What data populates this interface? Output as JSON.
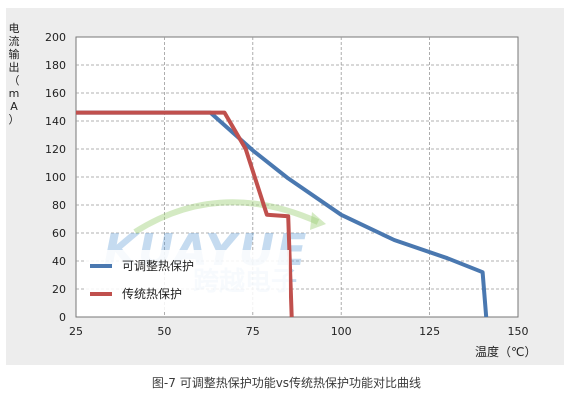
{
  "caption": "图-7 可调整热保护功能vs传统热保护功能对比曲线",
  "watermark": {
    "latin": "KUAYUE",
    "cjk": "跨越电子",
    "colors": [
      "#5b9bd5",
      "#9fd07a"
    ]
  },
  "chart_data": {
    "type": "line",
    "ylabel_chars": [
      "电",
      "流",
      "输",
      "出",
      "（",
      "m",
      "A",
      "）"
    ],
    "xlabel": "温度（℃）",
    "xlim": [
      25,
      150
    ],
    "ylim": [
      0,
      200
    ],
    "xticks": [
      25,
      50,
      75,
      100,
      125,
      150
    ],
    "yticks": [
      0,
      20,
      40,
      60,
      80,
      100,
      120,
      140,
      160,
      180,
      200
    ],
    "grid": true,
    "legend_position": "bottom-left",
    "series": [
      {
        "name": "可调整热保护",
        "color": "#4a78b0",
        "points": [
          [
            25,
            146
          ],
          [
            63,
            146
          ],
          [
            75,
            119
          ],
          [
            85,
            99
          ],
          [
            100,
            73
          ],
          [
            115,
            55
          ],
          [
            130,
            42
          ],
          [
            140,
            32
          ],
          [
            141,
            0
          ]
        ]
      },
      {
        "name": "传统热保护",
        "color": "#c0504d",
        "points": [
          [
            25,
            146
          ],
          [
            67,
            146
          ],
          [
            73,
            120
          ],
          [
            79,
            73
          ],
          [
            85,
            72
          ],
          [
            86,
            0
          ]
        ]
      }
    ]
  }
}
